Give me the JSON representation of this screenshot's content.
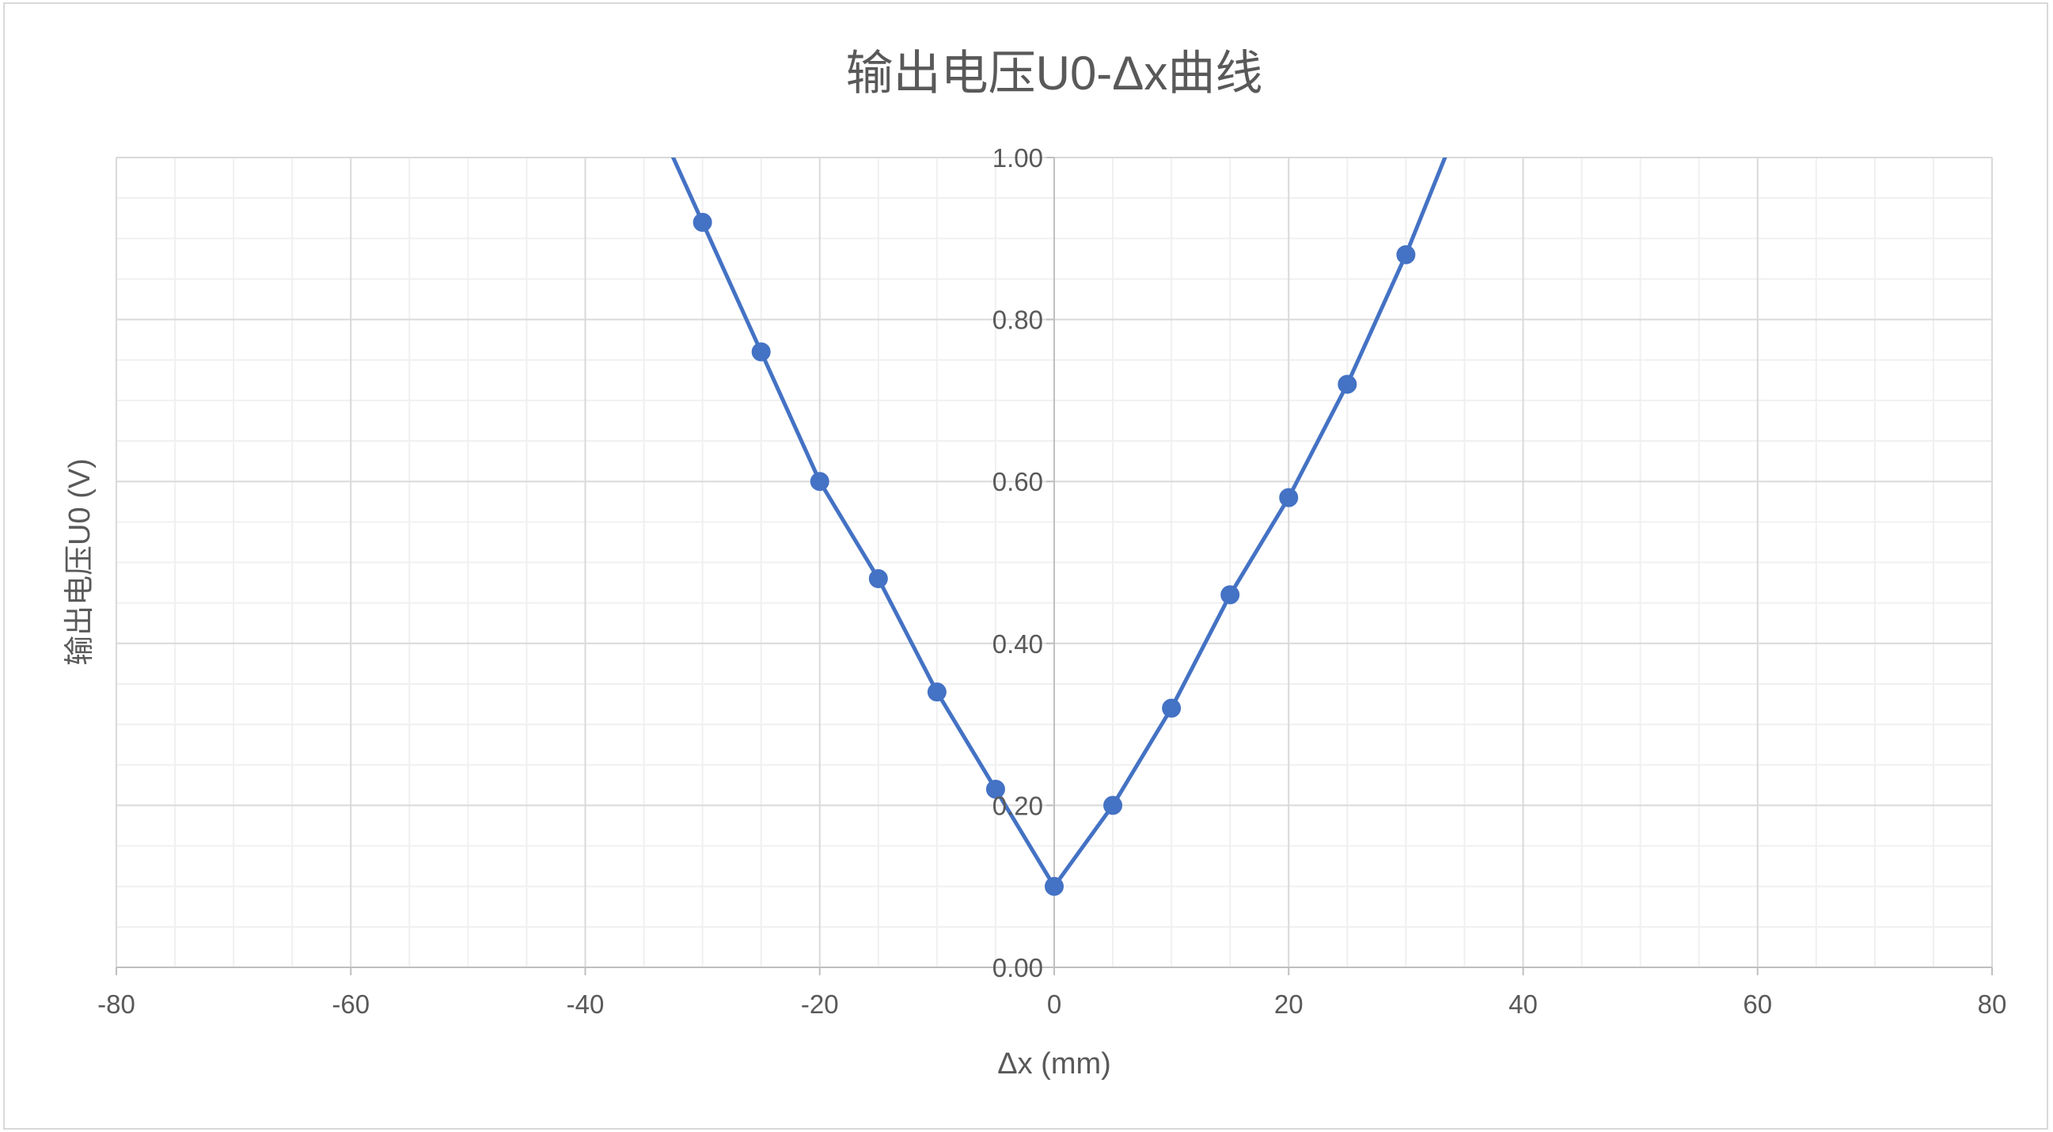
{
  "chart_data": {
    "type": "scatter",
    "title": "输出电压U0-Δx曲线",
    "xlabel": "Δx (mm)",
    "ylabel": "输出电压U0 (V)",
    "xlim": [
      -80,
      80
    ],
    "ylim": [
      0,
      1
    ],
    "x_ticks": [
      "-80",
      "-60",
      "-40",
      "-20",
      "0",
      "20",
      "40",
      "60",
      "80"
    ],
    "y_ticks": [
      "0.00",
      "0.20",
      "0.40",
      "0.60",
      "0.80",
      "1.00"
    ],
    "grid": true,
    "minor_grid": true,
    "legend": "none",
    "series": [
      {
        "color": "#4472c4",
        "marker": "circle",
        "line": "straight",
        "points": [
          [
            -35,
            1.08
          ],
          [
            -30,
            0.92
          ],
          [
            -25,
            0.76
          ],
          [
            -20,
            0.6
          ],
          [
            -15,
            0.48
          ],
          [
            -10,
            0.34
          ],
          [
            -5,
            0.22
          ],
          [
            0,
            0.1
          ],
          [
            5,
            0.2
          ],
          [
            10,
            0.32
          ],
          [
            15,
            0.46
          ],
          [
            20,
            0.58
          ],
          [
            25,
            0.72
          ],
          [
            30,
            0.88
          ],
          [
            35,
            1.06
          ]
        ]
      }
    ]
  }
}
